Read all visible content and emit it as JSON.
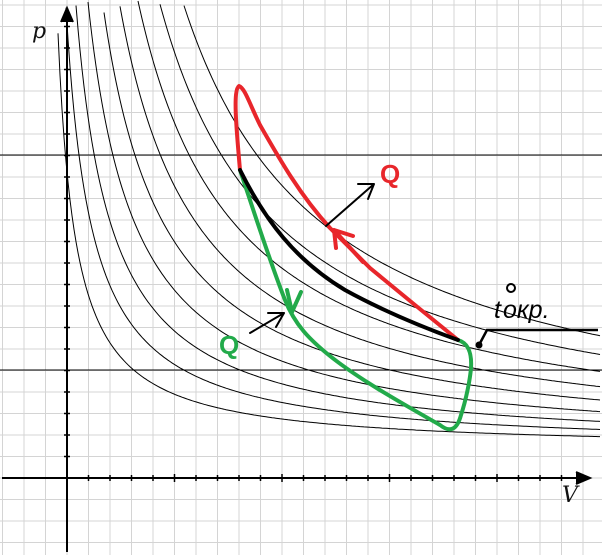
{
  "axes": {
    "x_label": "V",
    "y_label": "p"
  },
  "labels": {
    "heat_red": "Q",
    "heat_green": "Q",
    "ambient_temp_t": "t",
    "ambient_temp_suffix": "окр."
  },
  "colors": {
    "grid_minor": "#d4d4d4",
    "grid_major": "#000000",
    "isotherm": "#000000",
    "red_path": "#e8262b",
    "green_path": "#22aa4a",
    "black_path": "#000000",
    "arrow": "#000000"
  }
}
